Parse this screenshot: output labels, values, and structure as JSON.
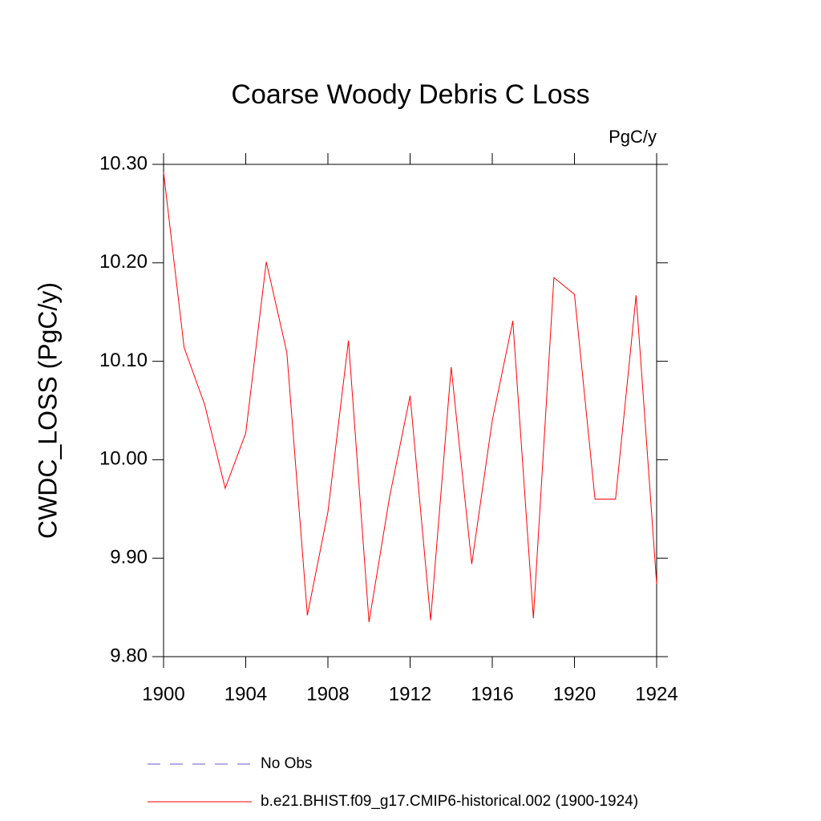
{
  "chart_data": {
    "type": "line",
    "title": "Coarse Woody Debris C Loss",
    "units": "PgC/y",
    "ylabel": "CWDC_LOSS  (PgC/y)",
    "x": [
      1900,
      1901,
      1902,
      1903,
      1904,
      1905,
      1906,
      1907,
      1908,
      1909,
      1910,
      1911,
      1912,
      1913,
      1914,
      1915,
      1916,
      1917,
      1918,
      1919,
      1920,
      1921,
      1922,
      1923,
      1924
    ],
    "series": [
      {
        "name": "No Obs",
        "color": "#6a5acd",
        "dashed": true,
        "values": [
          null,
          null,
          null,
          null,
          null,
          null,
          null,
          null,
          null,
          null,
          null,
          null,
          null,
          null,
          null,
          null,
          null,
          null,
          null,
          null,
          null,
          null,
          null,
          null,
          null
        ]
      },
      {
        "name": "b.e21.BHIST.f09_g17.CMIP6-historical.002 (1900-1924)",
        "color": "#ff0000",
        "dashed": false,
        "values": [
          10.292,
          10.114,
          10.056,
          9.971,
          10.027,
          10.201,
          10.109,
          9.842,
          9.947,
          10.121,
          9.835,
          9.962,
          10.065,
          9.837,
          10.094,
          9.894,
          10.04,
          10.141,
          9.839,
          10.185,
          10.168,
          9.96,
          9.96,
          10.167,
          9.874
        ]
      }
    ],
    "xlim": [
      1900,
      1924
    ],
    "xticks": [
      1900,
      1904,
      1908,
      1912,
      1916,
      1920,
      1924
    ],
    "ylim": [
      9.8,
      10.3
    ],
    "yticks": [
      {
        "value": 9.8,
        "label": "9.80"
      },
      {
        "value": 9.9,
        "label": "9.90"
      },
      {
        "value": 10.0,
        "label": "10.00"
      },
      {
        "value": 10.1,
        "label": "10.10"
      },
      {
        "value": 10.2,
        "label": "10.20"
      },
      {
        "value": 10.3,
        "label": "10.30"
      }
    ]
  }
}
